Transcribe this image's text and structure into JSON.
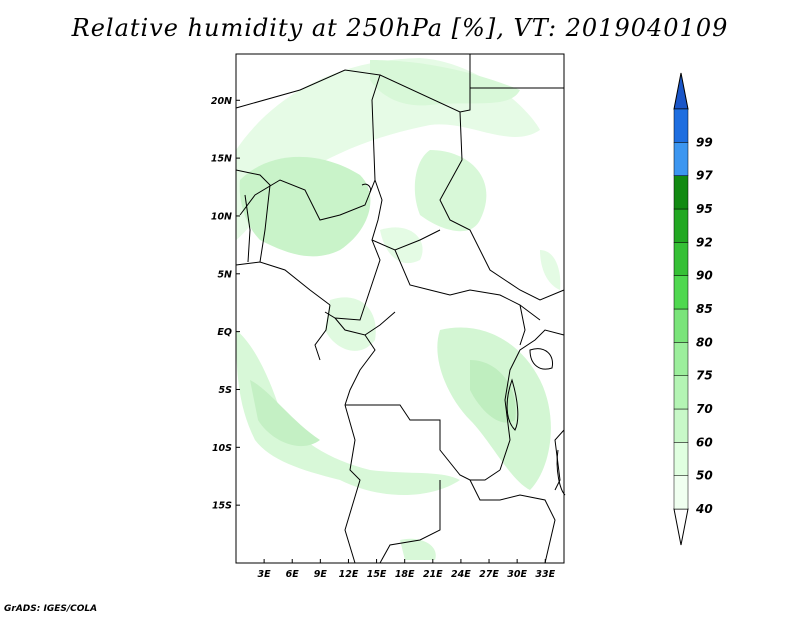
{
  "title": "Relative humidity at 250hPa [%], VT: 2019040109",
  "credit": "GrADS: IGES/COLA",
  "map": {
    "lon_range": [
      0,
      35
    ],
    "lat_range": [
      -20,
      24
    ],
    "lon_ticks": [
      {
        "value": 3,
        "label": "3E"
      },
      {
        "value": 6,
        "label": "6E"
      },
      {
        "value": 9,
        "label": "9E"
      },
      {
        "value": 12,
        "label": "12E"
      },
      {
        "value": 15,
        "label": "15E"
      },
      {
        "value": 18,
        "label": "18E"
      },
      {
        "value": 21,
        "label": "21E"
      },
      {
        "value": 24,
        "label": "24E"
      },
      {
        "value": 27,
        "label": "27E"
      },
      {
        "value": 30,
        "label": "30E"
      },
      {
        "value": 33,
        "label": "33E"
      }
    ],
    "lat_ticks": [
      {
        "value": 20,
        "label": "20N"
      },
      {
        "value": 15,
        "label": "15N"
      },
      {
        "value": 10,
        "label": "10N"
      },
      {
        "value": 5,
        "label": "5N"
      },
      {
        "value": 0,
        "label": "EQ"
      },
      {
        "value": -5,
        "label": "5S"
      },
      {
        "value": -10,
        "label": "10S"
      },
      {
        "value": -15,
        "label": "15S"
      }
    ]
  },
  "colorbar": {
    "levels": [
      {
        "label": "40",
        "color": "#f0fff0"
      },
      {
        "label": "50",
        "color": "#e0ffe0"
      },
      {
        "label": "60",
        "color": "#c8f8c8"
      },
      {
        "label": "70",
        "color": "#b4f4b4"
      },
      {
        "label": "75",
        "color": "#9cee9c"
      },
      {
        "label": "80",
        "color": "#7ae47a"
      },
      {
        "label": "85",
        "color": "#50d850"
      },
      {
        "label": "90",
        "color": "#36c036"
      },
      {
        "label": "92",
        "color": "#22a822"
      },
      {
        "label": "95",
        "color": "#128a12"
      },
      {
        "label": "97",
        "color": "#3c96f0"
      },
      {
        "label": "99",
        "color": "#1e6ee0"
      }
    ],
    "low_color": "#ffffff",
    "high_color": "#1a56c8"
  }
}
